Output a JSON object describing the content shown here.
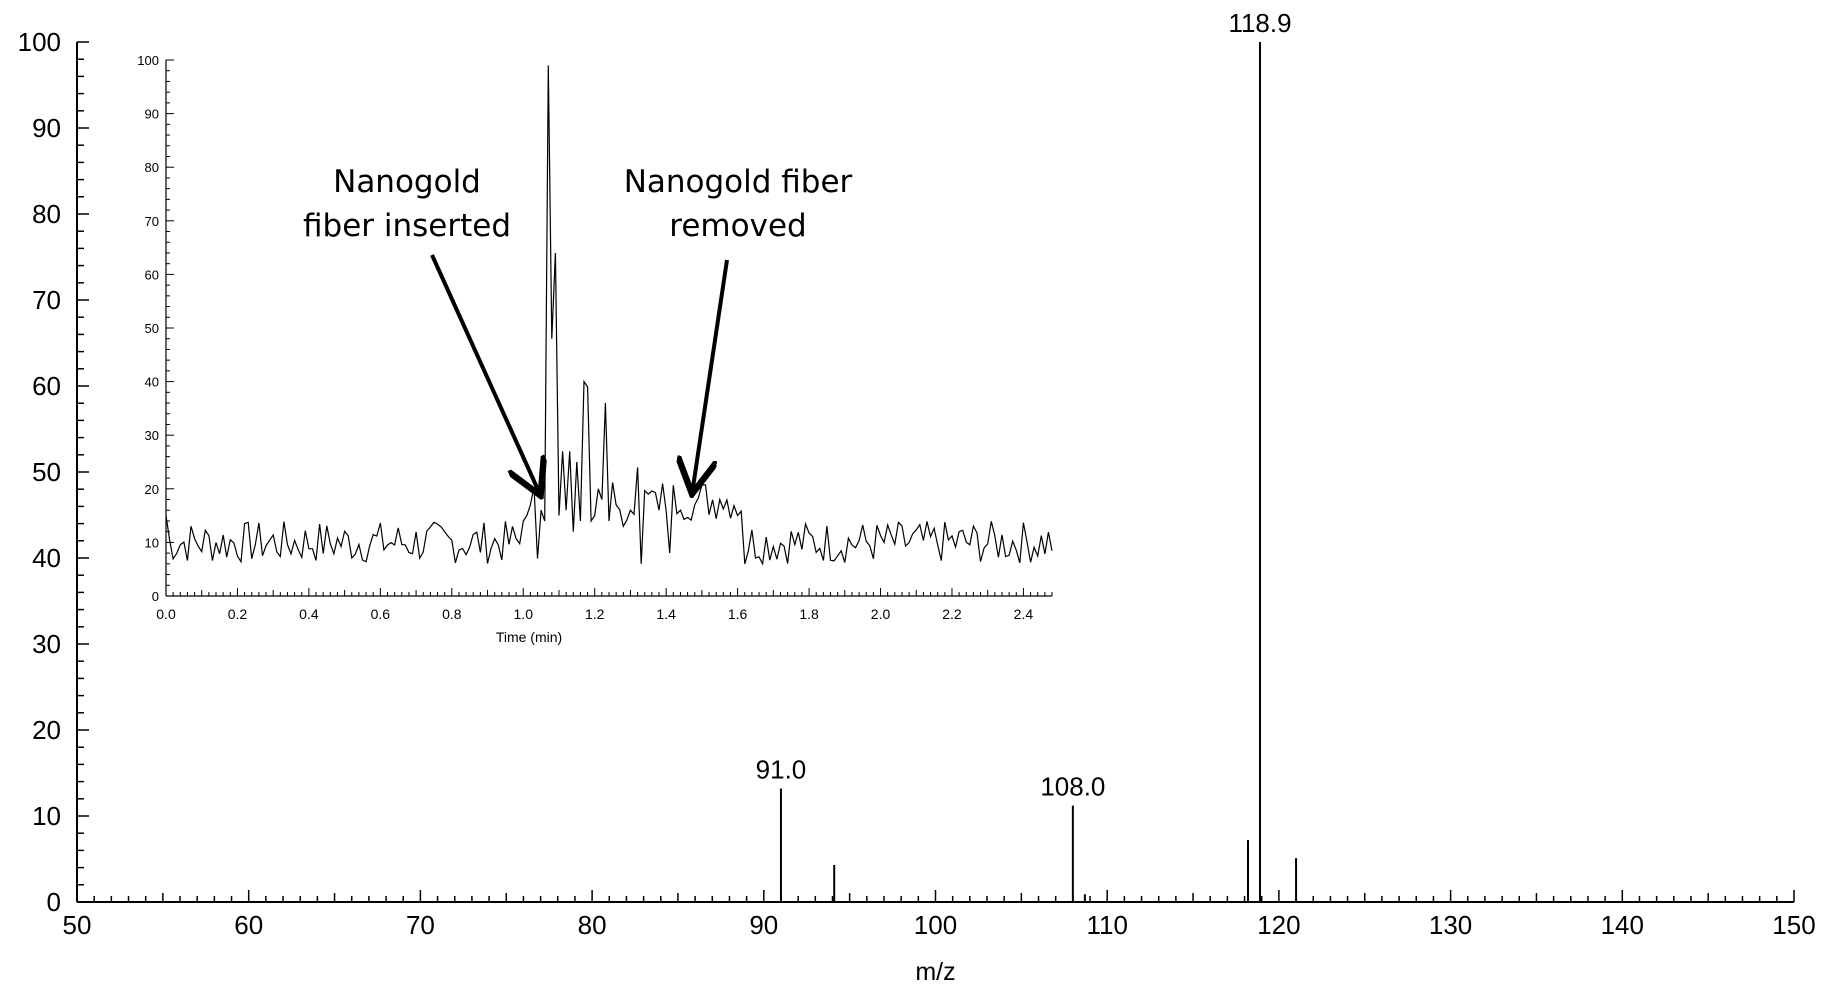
{
  "chart_data": [
    {
      "type": "bar",
      "xlabel": "m/z",
      "ylabel": "",
      "xlim": [
        50,
        150
      ],
      "ylim": [
        0,
        100
      ],
      "x_ticks": [
        50,
        60,
        70,
        80,
        90,
        100,
        110,
        120,
        130,
        140,
        150
      ],
      "y_ticks": [
        0,
        10,
        20,
        30,
        40,
        50,
        60,
        70,
        80,
        90,
        100
      ],
      "grid": false,
      "peaks": [
        {
          "mz": 91.0,
          "intensity": 13.2,
          "label": "91.0"
        },
        {
          "mz": 94.1,
          "intensity": 4.3,
          "label": ""
        },
        {
          "mz": 108.0,
          "intensity": 11.2,
          "label": "108.0"
        },
        {
          "mz": 108.7,
          "intensity": 0.9,
          "label": ""
        },
        {
          "mz": 118.2,
          "intensity": 7.2,
          "label": ""
        },
        {
          "mz": 118.9,
          "intensity": 100,
          "label": "118.9"
        },
        {
          "mz": 121.0,
          "intensity": 5.1,
          "label": ""
        }
      ]
    },
    {
      "type": "line",
      "xlabel": "Time (min)",
      "ylabel": "",
      "xlim": [
        0,
        2.48
      ],
      "ylim": [
        0,
        100
      ],
      "x_ticks": [
        "0.0",
        "0.2",
        "0.4",
        "0.6",
        "0.8",
        "1.0",
        "1.2",
        "1.4",
        "1.6",
        "1.8",
        "2.0",
        "2.2",
        "2.4"
      ],
      "y_ticks": [
        0,
        10,
        20,
        30,
        40,
        50,
        60,
        70,
        80,
        90,
        100
      ],
      "grid": false,
      "noise_baseline": 10,
      "x_step": 0.01,
      "key_points": [
        {
          "t": 1.0,
          "y": 14
        },
        {
          "t": 1.02,
          "y": 17
        },
        {
          "t": 1.04,
          "y": 7
        },
        {
          "t": 1.05,
          "y": 16
        },
        {
          "t": 1.06,
          "y": 14
        },
        {
          "t": 1.07,
          "y": 99
        },
        {
          "t": 1.08,
          "y": 48
        },
        {
          "t": 1.09,
          "y": 64
        },
        {
          "t": 1.1,
          "y": 15
        },
        {
          "t": 1.11,
          "y": 27
        },
        {
          "t": 1.12,
          "y": 16
        },
        {
          "t": 1.13,
          "y": 27
        },
        {
          "t": 1.14,
          "y": 12
        },
        {
          "t": 1.15,
          "y": 25
        },
        {
          "t": 1.16,
          "y": 14
        },
        {
          "t": 1.17,
          "y": 40
        },
        {
          "t": 1.18,
          "y": 39
        },
        {
          "t": 1.19,
          "y": 14
        },
        {
          "t": 1.2,
          "y": 15
        },
        {
          "t": 1.21,
          "y": 20
        },
        {
          "t": 1.22,
          "y": 18
        },
        {
          "t": 1.23,
          "y": 36
        },
        {
          "t": 1.24,
          "y": 14
        },
        {
          "t": 1.26,
          "y": 17
        },
        {
          "t": 1.28,
          "y": 13
        },
        {
          "t": 1.3,
          "y": 16
        },
        {
          "t": 1.32,
          "y": 24
        },
        {
          "t": 1.33,
          "y": 6
        },
        {
          "t": 1.35,
          "y": 19
        },
        {
          "t": 1.38,
          "y": 16
        },
        {
          "t": 1.41,
          "y": 8
        },
        {
          "t": 1.44,
          "y": 16
        },
        {
          "t": 1.48,
          "y": 17
        },
        {
          "t": 1.55,
          "y": 18
        },
        {
          "t": 1.6,
          "y": 15
        },
        {
          "t": 1.62,
          "y": 6
        }
      ],
      "annotations": [
        {
          "text_lines": [
            "Nanogold",
            "fiber inserted"
          ],
          "arrow_to_t": 1.03
        },
        {
          "text_lines": [
            "Nanogold fiber",
            "removed"
          ],
          "arrow_to_t": 1.46
        }
      ]
    }
  ]
}
